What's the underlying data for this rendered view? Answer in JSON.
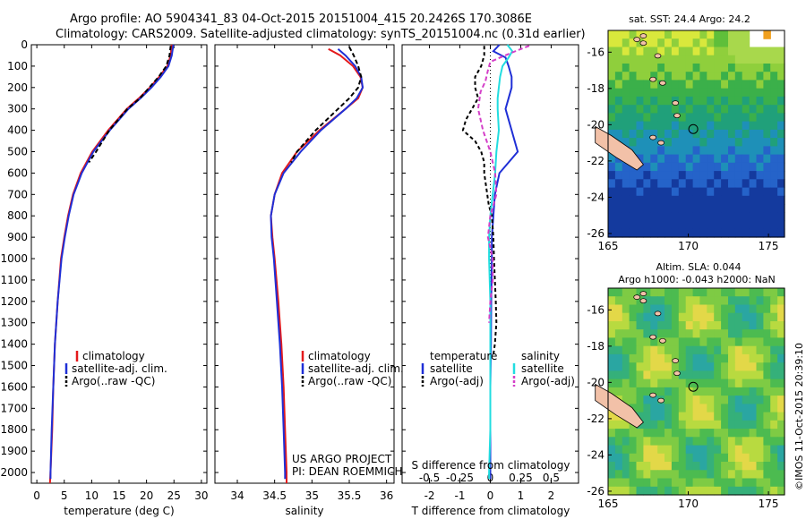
{
  "header": {
    "line1": "Argo profile: AO 5904341_83 04-Oct-2015 20151004_415 20.2426S 170.3086E",
    "line2": "Climatology: CARS2009. Satellite-adjusted climatology: synTS_20151004.nc (0.31d earlier)"
  },
  "colors": {
    "climatology": "#e41a1c",
    "satellite": "#1f2fd6",
    "argo": "#000000",
    "cyan": "#22dde0",
    "magenta": "#d43fc8",
    "land": "#f2c1a8"
  },
  "credit": "©IMOS 11-Oct-2015 20:39:10",
  "project": {
    "line1": "US ARGO PROJECT",
    "line2": "PI: DEAN ROEMMICH"
  },
  "chart_data": [
    {
      "type": "line",
      "id": "temperature",
      "xlabel": "temperature (deg C)",
      "ylabel": "",
      "xlim": [
        -1,
        31
      ],
      "ylim": [
        2050,
        0
      ],
      "xticks": [
        0,
        5,
        10,
        15,
        20,
        25,
        30
      ],
      "xtick_labels": [
        "0",
        "5",
        "10",
        "15",
        "20",
        "25",
        "30"
      ],
      "yticks": [
        0,
        100,
        200,
        300,
        400,
        500,
        600,
        700,
        800,
        900,
        1000,
        1100,
        1200,
        1300,
        1400,
        1500,
        1600,
        1700,
        1800,
        1900,
        2000
      ],
      "ytick_labels": [
        "0",
        "100",
        "200",
        "300",
        "400",
        "500",
        "600",
        "700",
        "800",
        "900",
        "1000",
        "1100",
        "1200",
        "1300",
        "1400",
        "1500",
        "1600",
        "1700",
        "1800",
        "1900",
        "2000"
      ],
      "legend": [
        "climatology",
        "satellite-adj. clim.",
        "Argo(..raw -QC)"
      ],
      "series": [
        {
          "name": "climatology",
          "depth": [
            0,
            50,
            100,
            150,
            200,
            250,
            300,
            400,
            500,
            600,
            700,
            800,
            900,
            1000,
            1200,
            1400,
            1600,
            1800,
            2000,
            2050
          ],
          "values": [
            24.6,
            24.4,
            23.8,
            22.3,
            20.6,
            18.6,
            16.4,
            13.0,
            10.1,
            8.0,
            6.6,
            5.7,
            5.0,
            4.4,
            3.8,
            3.3,
            3.0,
            2.8,
            2.5,
            2.4
          ]
        },
        {
          "name": "satellite-adj. clim.",
          "depth": [
            0,
            50,
            100,
            150,
            200,
            250,
            300,
            400,
            500,
            600,
            700,
            800,
            900,
            1000,
            1200,
            1400,
            1600,
            1800,
            2000,
            2030
          ],
          "values": [
            24.9,
            24.6,
            24.0,
            22.6,
            20.9,
            18.9,
            16.7,
            13.3,
            10.3,
            8.2,
            6.7,
            5.8,
            5.1,
            4.5,
            3.8,
            3.3,
            3.0,
            2.7,
            2.5,
            2.5
          ]
        },
        {
          "name": "Argo(..raw -QC)",
          "depth": [
            5,
            50,
            100,
            150,
            200,
            250,
            300,
            400,
            500,
            550
          ],
          "values": [
            24.4,
            24.2,
            23.6,
            22.2,
            20.5,
            18.8,
            16.5,
            13.2,
            10.8,
            9.5
          ]
        }
      ]
    },
    {
      "type": "line",
      "id": "salinity",
      "xlabel": "salinity",
      "xlim": [
        33.7,
        36.1
      ],
      "ylim": [
        2050,
        0
      ],
      "xticks": [
        34,
        34.5,
        35,
        35.5,
        36
      ],
      "xtick_labels": [
        "34",
        "34.5",
        "35",
        "35.5",
        "36"
      ],
      "legend": [
        "climatology",
        "satellite-adj. clim.",
        "Argo(..raw -QC)"
      ],
      "series": [
        {
          "name": "climatology",
          "depth": [
            20,
            50,
            100,
            150,
            200,
            250,
            300,
            400,
            500,
            600,
            700,
            800,
            900,
            1000,
            1200,
            1400,
            1600,
            1800,
            2000,
            2050
          ],
          "values": [
            35.22,
            35.38,
            35.55,
            35.65,
            35.68,
            35.62,
            35.45,
            35.1,
            34.8,
            34.6,
            34.5,
            34.45,
            34.47,
            34.5,
            34.55,
            34.59,
            34.62,
            34.64,
            34.66,
            34.66
          ]
        },
        {
          "name": "satellite-adj. clim.",
          "depth": [
            20,
            50,
            100,
            150,
            200,
            250,
            300,
            400,
            500,
            600,
            700,
            800,
            900,
            1000,
            1200,
            1400,
            1600,
            1800,
            2000,
            2030
          ],
          "values": [
            35.35,
            35.45,
            35.58,
            35.66,
            35.68,
            35.6,
            35.45,
            35.12,
            34.85,
            34.62,
            34.5,
            34.45,
            34.46,
            34.49,
            34.53,
            34.57,
            34.6,
            34.62,
            34.64,
            34.64
          ]
        },
        {
          "name": "Argo(..raw -QC)",
          "depth": [
            10,
            50,
            100,
            150,
            200,
            250,
            300,
            400,
            500,
            550
          ],
          "values": [
            35.5,
            35.56,
            35.62,
            35.66,
            35.62,
            35.5,
            35.35,
            35.05,
            34.8,
            34.72
          ]
        }
      ]
    },
    {
      "type": "line",
      "id": "difference",
      "xlabel": "T difference from climatology",
      "xlabel_top": "S difference from climatology",
      "xlim": [
        -2.9,
        2.9
      ],
      "ylim": [
        2050,
        0
      ],
      "xticks": [
        -2,
        -1,
        0,
        1,
        2
      ],
      "xtick_labels": [
        "-2",
        "-1",
        "0",
        "1",
        "2"
      ],
      "s_ticks": [
        -0.5,
        -0.25,
        0,
        0.25,
        0.5
      ],
      "s_tick_labels": [
        "-0.5",
        "-0.25",
        "0",
        "0.25",
        "0.5"
      ],
      "legend_temperature": {
        "title": "temperature",
        "items": [
          "satellite",
          "Argo(-adj)"
        ]
      },
      "legend_salinity": {
        "title": "salinity",
        "items": [
          "satellite",
          "Argo(-adj)"
        ]
      },
      "series": [
        {
          "name": "temperature satellite",
          "depth": [
            0,
            30,
            60,
            100,
            150,
            200,
            250,
            300,
            350,
            400,
            450,
            500,
            550,
            600,
            700,
            800,
            900,
            1000,
            1200,
            1400,
            1600,
            1800,
            2000,
            2030
          ],
          "values": [
            0.3,
            0.1,
            0.5,
            0.6,
            0.7,
            0.7,
            0.6,
            0.5,
            0.6,
            0.7,
            0.8,
            0.9,
            0.6,
            0.3,
            0.15,
            0.1,
            0.05,
            0.05,
            0.03,
            0.02,
            0.0,
            0.0,
            0.0,
            0.0
          ]
        },
        {
          "name": "temperature Argo(-adj)",
          "depth": [
            5,
            50,
            100,
            150,
            200,
            250,
            300,
            350,
            400,
            450,
            500,
            550,
            600,
            650,
            700,
            750,
            800,
            900,
            1000,
            1100,
            1200,
            1300,
            1400,
            1450
          ],
          "values": [
            -0.2,
            -0.2,
            -0.3,
            -0.5,
            -0.5,
            -0.4,
            -0.6,
            -0.8,
            -0.9,
            -0.5,
            -0.3,
            -0.2,
            -0.2,
            -0.15,
            -0.1,
            -0.05,
            0.05,
            0.1,
            0.12,
            0.15,
            0.18,
            0.2,
            0.15,
            0.1
          ]
        },
        {
          "name": "salinity satellite",
          "depth": [
            0,
            30,
            60,
            100,
            150,
            200,
            250,
            300,
            400,
            500,
            600,
            700,
            800,
            900,
            1000,
            1200,
            1400,
            1600,
            1800,
            2000,
            2030
          ],
          "values": [
            0.14,
            0.18,
            0.15,
            0.1,
            0.08,
            0.07,
            0.06,
            0.06,
            0.07,
            0.05,
            0.04,
            0.02,
            0.0,
            -0.01,
            -0.01,
            0.0,
            0.0,
            0.0,
            0.0,
            -0.01,
            -0.01
          ]
        },
        {
          "name": "salinity Argo(-adj)",
          "depth": [
            5,
            20,
            50,
            80,
            120,
            170,
            220,
            300,
            400,
            500,
            600,
            700,
            800,
            900,
            1000,
            1100,
            1200,
            1300
          ],
          "values": [
            0.32,
            0.25,
            0.12,
            0.0,
            -0.02,
            -0.04,
            -0.08,
            -0.1,
            -0.06,
            0.0,
            0.04,
            0.05,
            0.0,
            -0.02,
            0.02,
            0.02,
            0.0,
            -0.01
          ]
        }
      ]
    },
    {
      "type": "heatmap",
      "id": "sst-map",
      "title": "sat. SST: 24.4  Argo: 24.2",
      "xlim": [
        165,
        176
      ],
      "ylim": [
        -26.2,
        -14.8
      ],
      "xticks": [
        165,
        170,
        175
      ],
      "xtick_labels": [
        "165",
        "170",
        "175"
      ],
      "yticks": [
        -16,
        -18,
        -20,
        -22,
        -24,
        -26
      ],
      "ytick_labels": [
        "-16",
        "-18",
        "-20",
        "-22",
        "-24",
        "-26"
      ],
      "profile_location": [
        170.31,
        -20.24
      ]
    },
    {
      "type": "heatmap",
      "id": "sla-map",
      "title": "Altim. SLA: 0.044",
      "subtitle": "Argo h1000: -0.043  h2000: NaN",
      "xlim": [
        165,
        176
      ],
      "ylim": [
        -26.2,
        -14.8
      ],
      "xticks": [
        165,
        170,
        175
      ],
      "xtick_labels": [
        "165",
        "170",
        "175"
      ],
      "yticks": [
        -16,
        -18,
        -20,
        -22,
        -24,
        -26
      ],
      "ytick_labels": [
        "-16",
        "-18",
        "-20",
        "-22",
        "-24",
        "-26"
      ],
      "profile_location": [
        170.31,
        -20.24
      ]
    }
  ]
}
